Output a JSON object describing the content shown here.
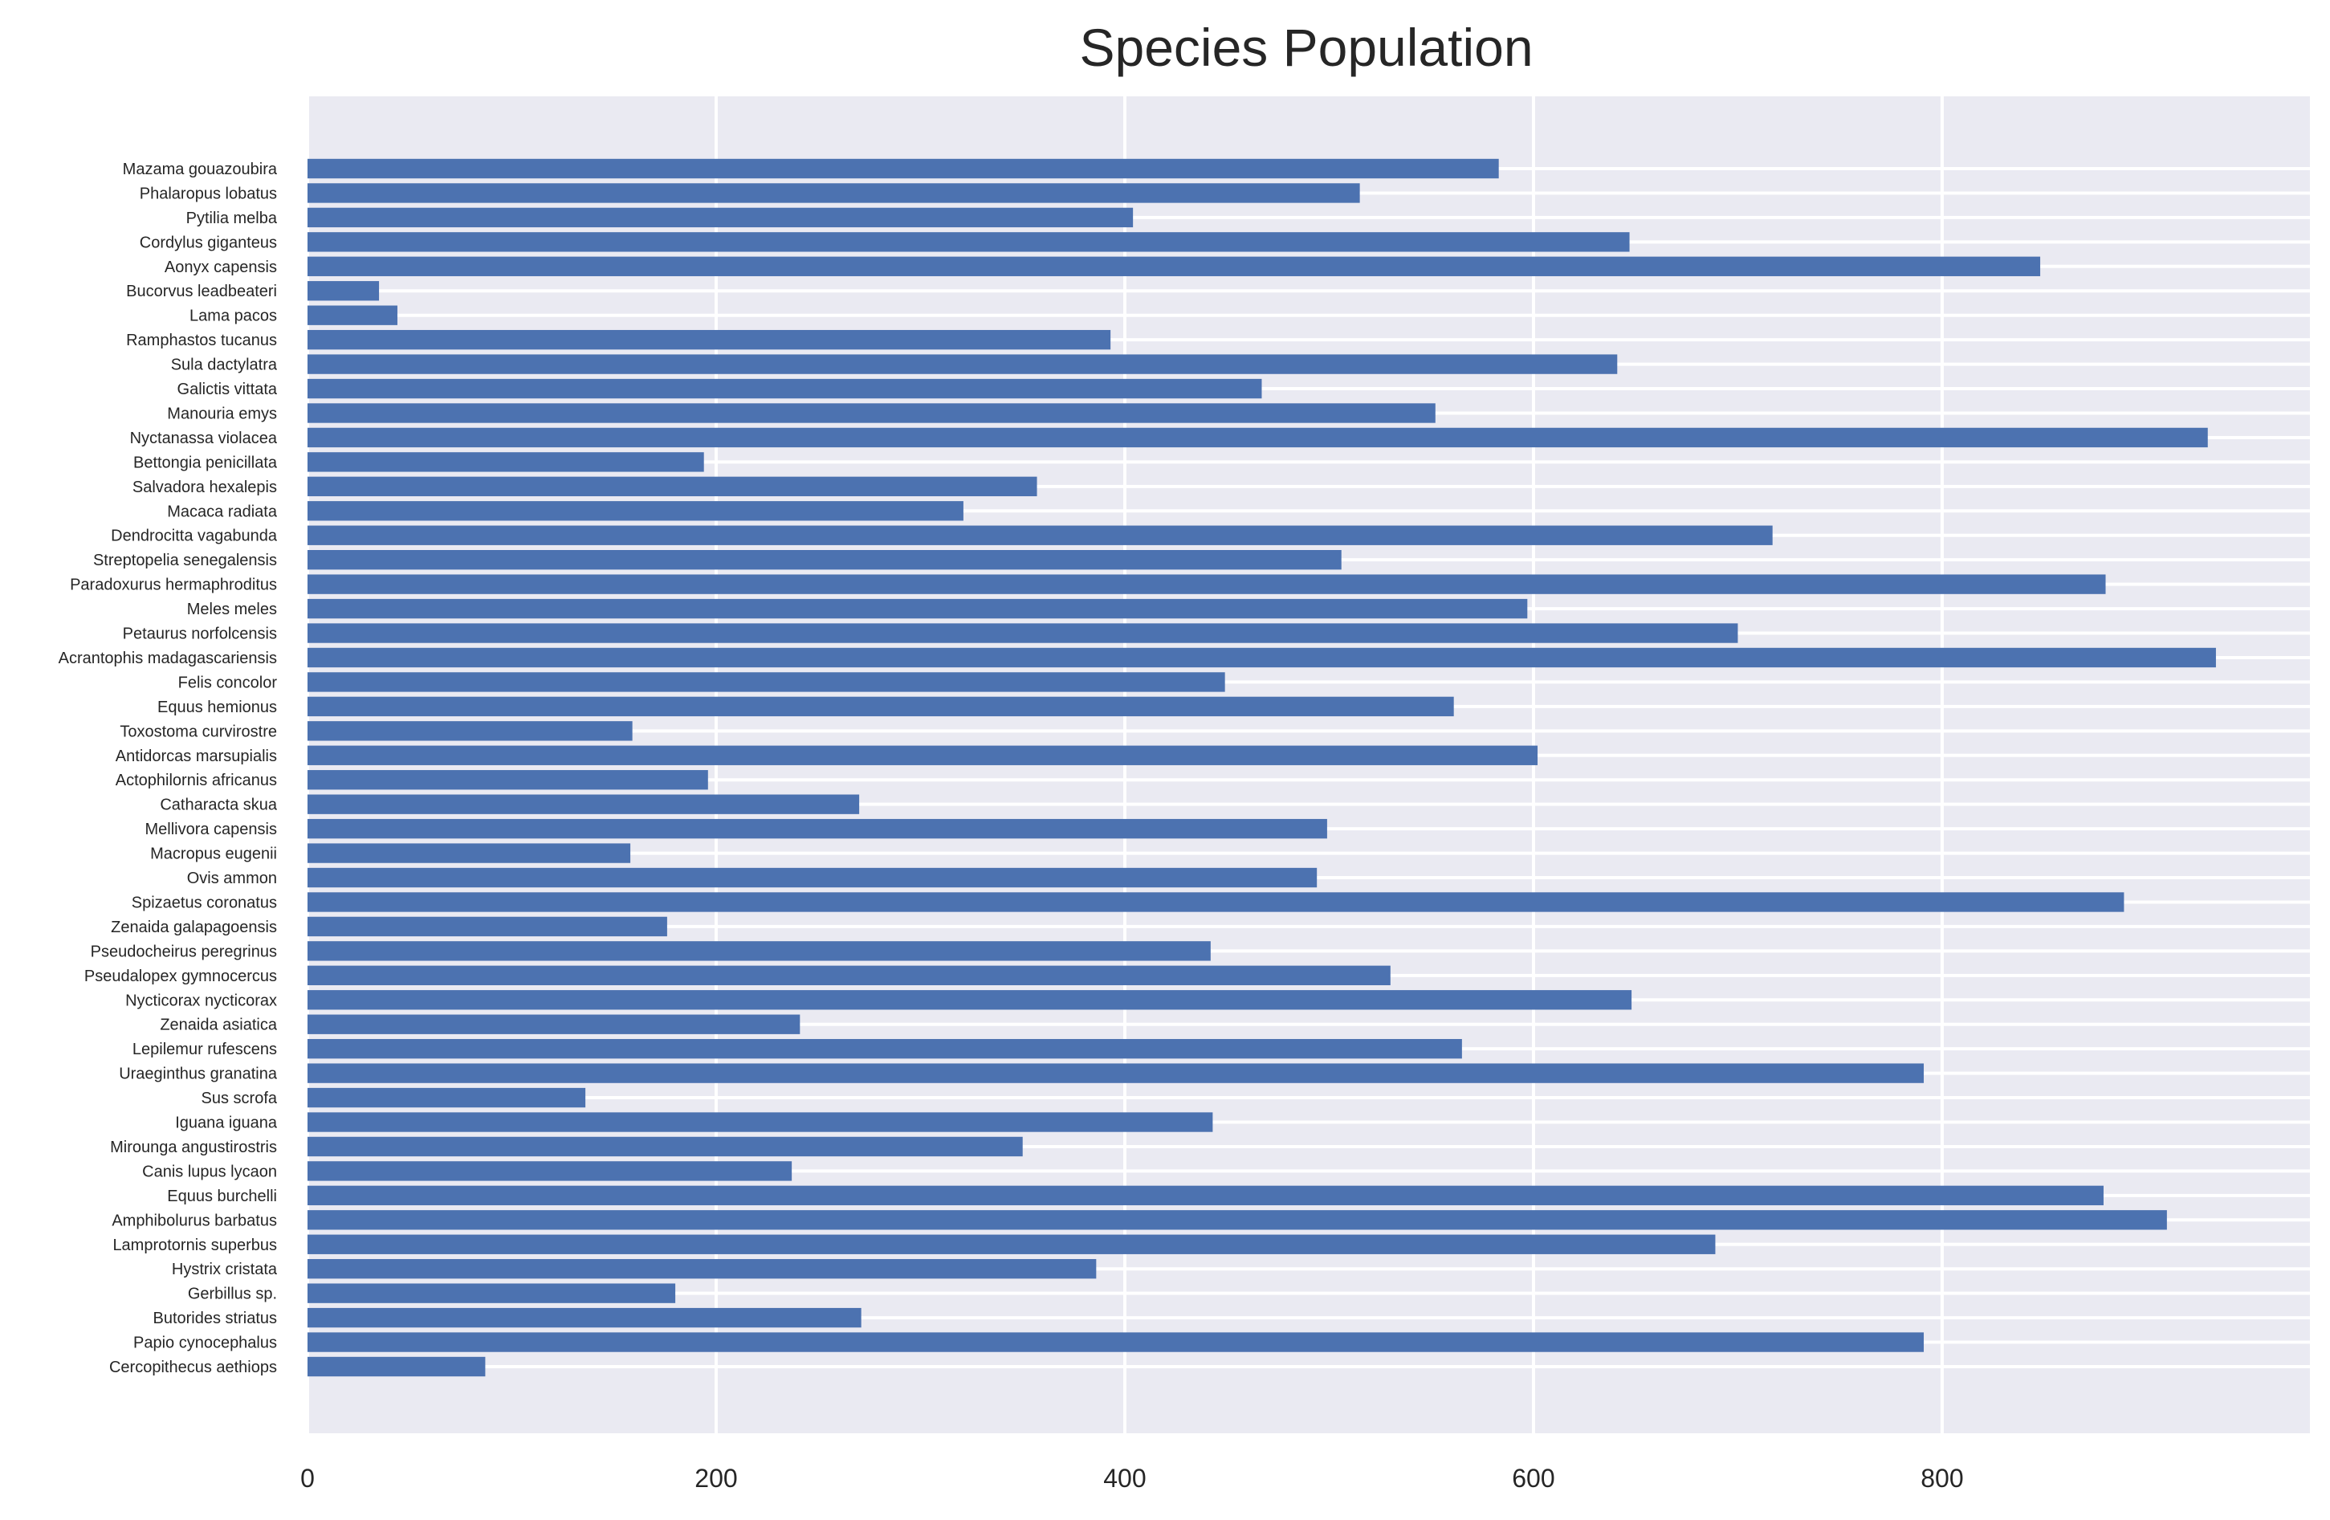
{
  "chart_data": {
    "type": "bar",
    "orientation": "horizontal",
    "title": "Species Population",
    "xlabel": "",
    "ylabel": "",
    "xlim": [
      0,
      980
    ],
    "xticks": [
      0,
      200,
      400,
      600,
      800
    ],
    "grid": true,
    "bar_color": "#4c72b0",
    "background_color": "#eaeaf2",
    "grid_color": "#ffffff",
    "categories": [
      "Mazama gouazoubira",
      "Phalaropus lobatus",
      "Pytilia melba",
      "Cordylus giganteus",
      "Aonyx capensis",
      "Bucorvus leadbeateri",
      "Lama pacos",
      "Ramphastos tucanus",
      "Sula dactylatra",
      "Galictis vittata",
      "Manouria emys",
      "Nyctanassa violacea",
      "Bettongia penicillata",
      "Salvadora hexalepis",
      "Macaca radiata",
      "Dendrocitta vagabunda",
      "Streptopelia senegalensis",
      "Paradoxurus hermaphroditus",
      "Meles meles",
      "Petaurus norfolcensis",
      "Acrantophis madagascariensis",
      "Felis concolor",
      "Equus hemionus",
      "Toxostoma curvirostre",
      "Antidorcas marsupialis",
      "Actophilornis africanus",
      "Catharacta skua",
      "Mellivora capensis",
      "Macropus eugenii",
      "Ovis ammon",
      "Spizaetus coronatus",
      "Zenaida galapagoensis",
      "Pseudocheirus peregrinus",
      "Pseudalopex gymnocercus",
      "Nycticorax nycticorax",
      "Zenaida asiatica",
      "Lepilemur rufescens",
      "Uraeginthus granatina",
      "Sus scrofa",
      "Iguana iguana",
      "Mirounga angustirostris",
      "Canis lupus lycaon",
      "Equus burchelli",
      "Amphibolurus barbatus",
      "Lamprotornis superbus",
      "Hystrix cristata",
      "Gerbillus sp.",
      "Butorides striatus",
      "Papio cynocephalus",
      "Cercopithecus aethiops"
    ],
    "values": [
      583,
      515,
      404,
      647,
      848,
      35,
      44,
      393,
      641,
      467,
      552,
      930,
      194,
      357,
      321,
      717,
      506,
      880,
      597,
      700,
      934,
      449,
      561,
      159,
      602,
      196,
      270,
      499,
      158,
      494,
      889,
      176,
      442,
      530,
      648,
      241,
      565,
      791,
      136,
      443,
      350,
      237,
      879,
      910,
      689,
      386,
      180,
      271,
      791,
      87
    ]
  }
}
